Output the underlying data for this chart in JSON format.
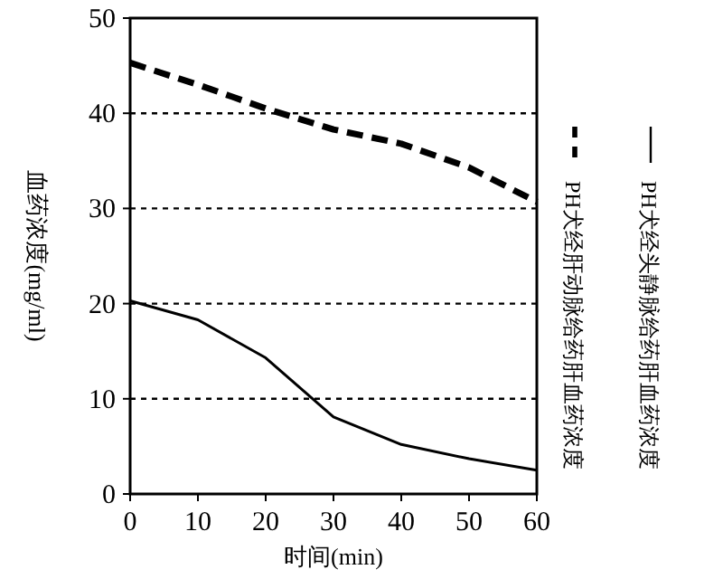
{
  "chart_data": {
    "type": "line",
    "xlabel": "时间(min)",
    "ylabel": "血药浓度(mg/ml)",
    "x": [
      0,
      10,
      20,
      30,
      40,
      50,
      60
    ],
    "series": [
      {
        "name": "PH犬经头静脉给药肝血药浓度",
        "color": "#000000",
        "line_style": "solid",
        "values": [
          20.3,
          18.3,
          14.3,
          8.1,
          5.2,
          3.7,
          2.5
        ]
      },
      {
        "name": "PH犬经肝动脉给药肝血药浓度",
        "color": "#000000",
        "line_style": "dashed",
        "values": [
          45.3,
          43.0,
          40.5,
          38.3,
          36.8,
          34.3,
          30.7
        ]
      }
    ],
    "xlim": [
      0,
      60
    ],
    "xticks": [
      0,
      10,
      20,
      30,
      40,
      50,
      60
    ],
    "ylim": [
      0,
      50
    ],
    "yticks": [
      0,
      10,
      20,
      30,
      40,
      50
    ],
    "grid": "y",
    "legend": "right",
    "marker": "none"
  }
}
